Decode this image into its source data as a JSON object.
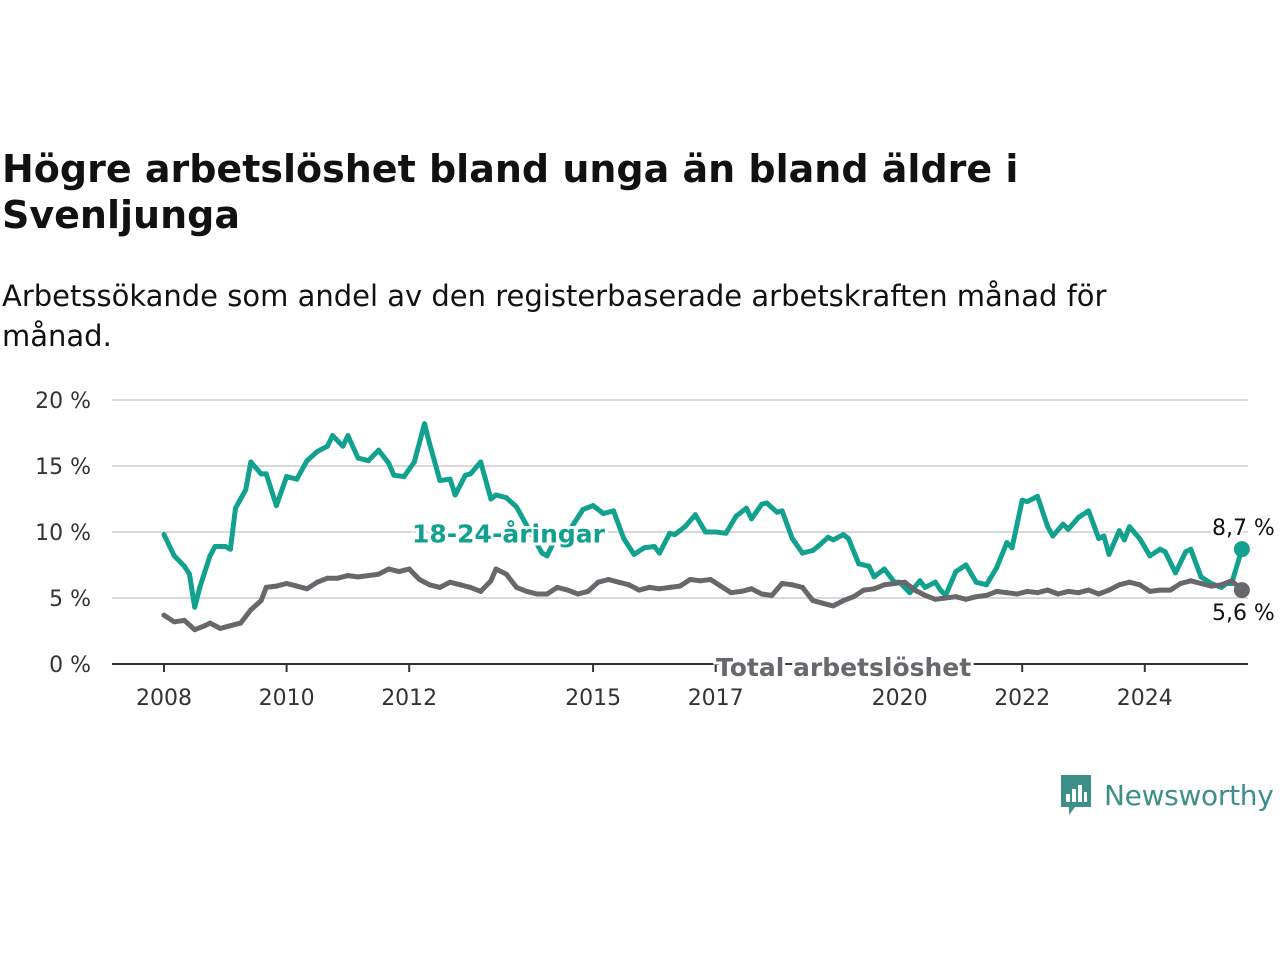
{
  "title": "Högre arbetslöshet bland unga än bland äldre i Svenljunga",
  "subtitle": "Arbetssökande som andel av den registerbaserade arbetskraften månad för månad.",
  "brand": {
    "name": "Newsworthy",
    "icon": "newsworthy-logo-icon",
    "color": "#3d8f8a"
  },
  "chart_data": {
    "type": "line",
    "ylim": [
      0,
      20
    ],
    "y_ticks": [
      0,
      5,
      10,
      15,
      20
    ],
    "y_tick_labels": [
      "0 %",
      "5 %",
      "10 %",
      "15 %",
      "20 %"
    ],
    "x_range": [
      "2008-01",
      "2025-08"
    ],
    "x_ticks": [
      "2008-01",
      "2010-01",
      "2012-01",
      "2015-01",
      "2017-01",
      "2020-01",
      "2022-01",
      "2024-01"
    ],
    "x_tick_labels": [
      "2008",
      "2010",
      "2012",
      "2015",
      "2017",
      "2020",
      "2022",
      "2024"
    ],
    "grid": true,
    "series": [
      {
        "name": "18-24-åringar",
        "color": "#12a08f",
        "end_label": "8,7 %",
        "points": [
          [
            "2008-01",
            9.8
          ],
          [
            "2008-03",
            8.2
          ],
          [
            "2008-05",
            7.4
          ],
          [
            "2008-06",
            6.8
          ],
          [
            "2008-07",
            4.3
          ],
          [
            "2008-08",
            5.8
          ],
          [
            "2008-10",
            8.2
          ],
          [
            "2008-11",
            8.9
          ],
          [
            "2009-01",
            8.9
          ],
          [
            "2009-02",
            8.7
          ],
          [
            "2009-03",
            11.8
          ],
          [
            "2009-05",
            13.2
          ],
          [
            "2009-06",
            15.3
          ],
          [
            "2009-08",
            14.4
          ],
          [
            "2009-09",
            14.4
          ],
          [
            "2009-11",
            12.0
          ],
          [
            "2010-01",
            14.2
          ],
          [
            "2010-03",
            14.0
          ],
          [
            "2010-05",
            15.4
          ],
          [
            "2010-07",
            16.1
          ],
          [
            "2010-09",
            16.5
          ],
          [
            "2010-10",
            17.3
          ],
          [
            "2010-12",
            16.5
          ],
          [
            "2011-01",
            17.3
          ],
          [
            "2011-03",
            15.6
          ],
          [
            "2011-05",
            15.4
          ],
          [
            "2011-07",
            16.2
          ],
          [
            "2011-09",
            15.2
          ],
          [
            "2011-10",
            14.3
          ],
          [
            "2011-12",
            14.2
          ],
          [
            "2012-02",
            15.3
          ],
          [
            "2012-04",
            18.2
          ],
          [
            "2012-05",
            16.7
          ],
          [
            "2012-07",
            13.9
          ],
          [
            "2012-09",
            14.0
          ],
          [
            "2012-10",
            12.8
          ],
          [
            "2012-12",
            14.3
          ],
          [
            "2013-01",
            14.4
          ],
          [
            "2013-03",
            15.3
          ],
          [
            "2013-05",
            12.5
          ],
          [
            "2013-06",
            12.8
          ],
          [
            "2013-08",
            12.6
          ],
          [
            "2013-10",
            11.9
          ],
          [
            "2014-03",
            8.4
          ],
          [
            "2014-04",
            8.2
          ],
          [
            "2014-06",
            9.8
          ],
          [
            "2014-07",
            9.3
          ],
          [
            "2014-09",
            10.5
          ],
          [
            "2014-11",
            11.7
          ],
          [
            "2015-01",
            12.0
          ],
          [
            "2015-03",
            11.4
          ],
          [
            "2015-05",
            11.6
          ],
          [
            "2015-07",
            9.5
          ],
          [
            "2015-09",
            8.3
          ],
          [
            "2015-11",
            8.8
          ],
          [
            "2016-01",
            8.9
          ],
          [
            "2016-02",
            8.4
          ],
          [
            "2016-04",
            9.9
          ],
          [
            "2016-05",
            9.8
          ],
          [
            "2016-07",
            10.4
          ],
          [
            "2016-09",
            11.3
          ],
          [
            "2016-11",
            10.0
          ],
          [
            "2017-01",
            10.0
          ],
          [
            "2017-03",
            9.9
          ],
          [
            "2017-05",
            11.2
          ],
          [
            "2017-07",
            11.8
          ],
          [
            "2017-08",
            11.0
          ],
          [
            "2017-10",
            12.1
          ],
          [
            "2017-11",
            12.2
          ],
          [
            "2018-01",
            11.5
          ],
          [
            "2018-02",
            11.6
          ],
          [
            "2018-04",
            9.5
          ],
          [
            "2018-06",
            8.4
          ],
          [
            "2018-08",
            8.6
          ],
          [
            "2018-09",
            8.9
          ],
          [
            "2018-11",
            9.6
          ],
          [
            "2018-12",
            9.4
          ],
          [
            "2019-02",
            9.8
          ],
          [
            "2019-03",
            9.5
          ],
          [
            "2019-05",
            7.6
          ],
          [
            "2019-07",
            7.4
          ],
          [
            "2019-08",
            6.6
          ],
          [
            "2019-10",
            7.2
          ],
          [
            "2019-12",
            6.2
          ],
          [
            "2020-01",
            6.2
          ],
          [
            "2020-03",
            5.4
          ],
          [
            "2020-05",
            6.3
          ],
          [
            "2020-06",
            5.8
          ],
          [
            "2020-08",
            6.2
          ],
          [
            "2020-09",
            5.6
          ],
          [
            "2020-10",
            5.2
          ],
          [
            "2020-12",
            7.0
          ],
          [
            "2021-02",
            7.5
          ],
          [
            "2021-04",
            6.2
          ],
          [
            "2021-06",
            6.0
          ],
          [
            "2021-08",
            7.3
          ],
          [
            "2021-10",
            9.2
          ],
          [
            "2021-11",
            8.8
          ],
          [
            "2022-01",
            12.4
          ],
          [
            "2022-02",
            12.3
          ],
          [
            "2022-04",
            12.7
          ],
          [
            "2022-06",
            10.4
          ],
          [
            "2022-07",
            9.7
          ],
          [
            "2022-09",
            10.6
          ],
          [
            "2022-10",
            10.2
          ],
          [
            "2022-12",
            11.1
          ],
          [
            "2023-02",
            11.6
          ],
          [
            "2023-04",
            9.5
          ],
          [
            "2023-05",
            9.7
          ],
          [
            "2023-06",
            8.3
          ],
          [
            "2023-08",
            10.1
          ],
          [
            "2023-09",
            9.4
          ],
          [
            "2023-10",
            10.4
          ],
          [
            "2023-12",
            9.5
          ],
          [
            "2024-02",
            8.2
          ],
          [
            "2024-04",
            8.7
          ],
          [
            "2024-05",
            8.5
          ],
          [
            "2024-07",
            6.9
          ],
          [
            "2024-09",
            8.5
          ],
          [
            "2024-10",
            8.7
          ],
          [
            "2024-12",
            6.6
          ],
          [
            "2025-02",
            6.1
          ],
          [
            "2025-04",
            5.8
          ],
          [
            "2025-05",
            6.1
          ],
          [
            "2025-06",
            6.1
          ],
          [
            "2025-08",
            8.7
          ]
        ]
      },
      {
        "name": "Total arbetslöshet",
        "color": "#68676c",
        "end_label": "5,6 %",
        "points": [
          [
            "2008-01",
            3.7
          ],
          [
            "2008-03",
            3.2
          ],
          [
            "2008-05",
            3.3
          ],
          [
            "2008-07",
            2.6
          ],
          [
            "2008-09",
            2.9
          ],
          [
            "2008-10",
            3.1
          ],
          [
            "2008-12",
            2.7
          ],
          [
            "2009-02",
            2.9
          ],
          [
            "2009-04",
            3.1
          ],
          [
            "2009-06",
            4.1
          ],
          [
            "2009-08",
            4.8
          ],
          [
            "2009-09",
            5.8
          ],
          [
            "2009-11",
            5.9
          ],
          [
            "2010-01",
            6.1
          ],
          [
            "2010-03",
            5.9
          ],
          [
            "2010-05",
            5.7
          ],
          [
            "2010-07",
            6.2
          ],
          [
            "2010-09",
            6.5
          ],
          [
            "2010-11",
            6.5
          ],
          [
            "2011-01",
            6.7
          ],
          [
            "2011-03",
            6.6
          ],
          [
            "2011-05",
            6.7
          ],
          [
            "2011-07",
            6.8
          ],
          [
            "2011-09",
            7.2
          ],
          [
            "2011-11",
            7.0
          ],
          [
            "2012-01",
            7.2
          ],
          [
            "2012-03",
            6.4
          ],
          [
            "2012-05",
            6.0
          ],
          [
            "2012-07",
            5.8
          ],
          [
            "2012-09",
            6.2
          ],
          [
            "2012-11",
            6.0
          ],
          [
            "2013-01",
            5.8
          ],
          [
            "2013-03",
            5.5
          ],
          [
            "2013-05",
            6.3
          ],
          [
            "2013-06",
            7.2
          ],
          [
            "2013-08",
            6.8
          ],
          [
            "2013-10",
            5.8
          ],
          [
            "2013-12",
            5.5
          ],
          [
            "2014-02",
            5.3
          ],
          [
            "2014-04",
            5.3
          ],
          [
            "2014-06",
            5.8
          ],
          [
            "2014-08",
            5.6
          ],
          [
            "2014-10",
            5.3
          ],
          [
            "2014-12",
            5.5
          ],
          [
            "2015-02",
            6.2
          ],
          [
            "2015-04",
            6.4
          ],
          [
            "2015-06",
            6.2
          ],
          [
            "2015-08",
            6.0
          ],
          [
            "2015-10",
            5.6
          ],
          [
            "2015-12",
            5.8
          ],
          [
            "2016-02",
            5.7
          ],
          [
            "2016-04",
            5.8
          ],
          [
            "2016-06",
            5.9
          ],
          [
            "2016-08",
            6.4
          ],
          [
            "2016-10",
            6.3
          ],
          [
            "2016-12",
            6.4
          ],
          [
            "2017-02",
            5.9
          ],
          [
            "2017-04",
            5.4
          ],
          [
            "2017-06",
            5.5
          ],
          [
            "2017-08",
            5.7
          ],
          [
            "2017-10",
            5.3
          ],
          [
            "2017-12",
            5.2
          ],
          [
            "2018-02",
            6.1
          ],
          [
            "2018-04",
            6.0
          ],
          [
            "2018-06",
            5.8
          ],
          [
            "2018-08",
            4.8
          ],
          [
            "2018-10",
            4.6
          ],
          [
            "2018-12",
            4.4
          ],
          [
            "2019-02",
            4.8
          ],
          [
            "2019-04",
            5.1
          ],
          [
            "2019-06",
            5.6
          ],
          [
            "2019-08",
            5.7
          ],
          [
            "2019-10",
            6.0
          ],
          [
            "2019-12",
            6.1
          ],
          [
            "2020-02",
            6.2
          ],
          [
            "2020-04",
            5.6
          ],
          [
            "2020-06",
            5.2
          ],
          [
            "2020-08",
            4.9
          ],
          [
            "2020-10",
            5.0
          ],
          [
            "2020-12",
            5.1
          ],
          [
            "2021-02",
            4.9
          ],
          [
            "2021-04",
            5.1
          ],
          [
            "2021-06",
            5.2
          ],
          [
            "2021-08",
            5.5
          ],
          [
            "2021-10",
            5.4
          ],
          [
            "2021-12",
            5.3
          ],
          [
            "2022-02",
            5.5
          ],
          [
            "2022-04",
            5.4
          ],
          [
            "2022-06",
            5.6
          ],
          [
            "2022-08",
            5.3
          ],
          [
            "2022-10",
            5.5
          ],
          [
            "2022-12",
            5.4
          ],
          [
            "2023-02",
            5.6
          ],
          [
            "2023-04",
            5.3
          ],
          [
            "2023-06",
            5.6
          ],
          [
            "2023-08",
            6.0
          ],
          [
            "2023-10",
            6.2
          ],
          [
            "2023-12",
            6.0
          ],
          [
            "2024-02",
            5.5
          ],
          [
            "2024-04",
            5.6
          ],
          [
            "2024-06",
            5.6
          ],
          [
            "2024-08",
            6.1
          ],
          [
            "2024-10",
            6.3
          ],
          [
            "2024-12",
            6.1
          ],
          [
            "2025-02",
            5.9
          ],
          [
            "2025-04",
            6.0
          ],
          [
            "2025-06",
            6.3
          ],
          [
            "2025-08",
            5.6
          ]
        ]
      }
    ]
  }
}
